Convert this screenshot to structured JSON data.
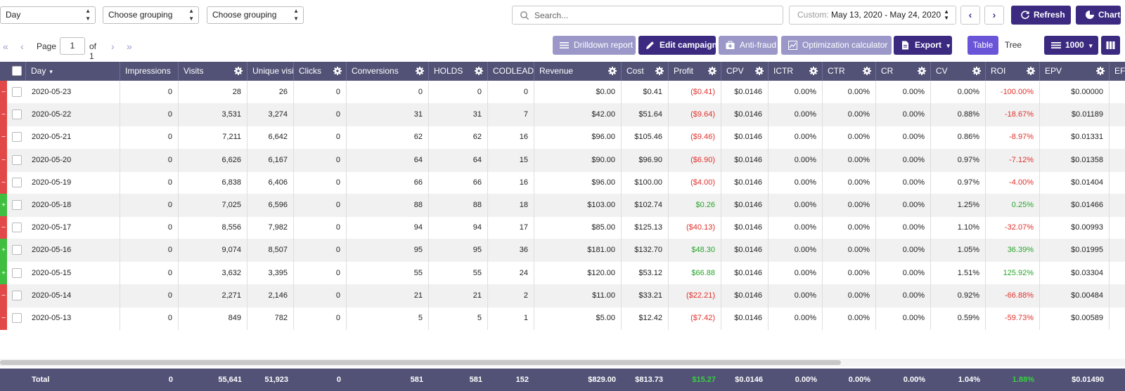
{
  "filters": {
    "period": "Day",
    "grouping1": "Choose grouping",
    "grouping2": "Choose grouping",
    "search_placeholder": "Search...",
    "date_label": "Custom:",
    "date_value": "May 13, 2020 - May 24, 2020",
    "refresh": "Refresh",
    "chart": "Chart"
  },
  "pager": {
    "page_label": "Page",
    "page_value": "1",
    "of_label": "of 1"
  },
  "toolbar": {
    "drilldown": "Drilldown report",
    "edit_campaign": "Edit campaign",
    "anti_fraud": "Anti-fraud",
    "optimization": "Optimization calculator",
    "export": "Export",
    "table": "Table",
    "tree": "Tree",
    "rows": "1000"
  },
  "columns": [
    "Day",
    "Impressions",
    "Visits",
    "Unique visi",
    "Clicks",
    "Conversions",
    "HOLDS",
    "CODLEAD",
    "Revenue",
    "Cost",
    "Profit",
    "CPV",
    "ICTR",
    "CTR",
    "CR",
    "CV",
    "ROI",
    "EPV",
    "EF"
  ],
  "rows": [
    {
      "status": "minus",
      "day": "2020-05-23",
      "impressions": "0",
      "visits": "28",
      "unique": "26",
      "clicks": "0",
      "conversions": "0",
      "holds": "0",
      "codlead": "0",
      "revenue": "$0.00",
      "cost": "$0.41",
      "profit": "($0.41)",
      "cpv": "$0.0146",
      "ictr": "0.00%",
      "ctr": "0.00%",
      "cr": "0.00%",
      "cv": "0.00%",
      "roi": "-100.00%",
      "epv": "$0.00000"
    },
    {
      "status": "minus",
      "day": "2020-05-22",
      "impressions": "0",
      "visits": "3,531",
      "unique": "3,274",
      "clicks": "0",
      "conversions": "31",
      "holds": "31",
      "codlead": "7",
      "revenue": "$42.00",
      "cost": "$51.64",
      "profit": "($9.64)",
      "cpv": "$0.0146",
      "ictr": "0.00%",
      "ctr": "0.00%",
      "cr": "0.00%",
      "cv": "0.88%",
      "roi": "-18.67%",
      "epv": "$0.01189"
    },
    {
      "status": "minus",
      "day": "2020-05-21",
      "impressions": "0",
      "visits": "7,211",
      "unique": "6,642",
      "clicks": "0",
      "conversions": "62",
      "holds": "62",
      "codlead": "16",
      "revenue": "$96.00",
      "cost": "$105.46",
      "profit": "($9.46)",
      "cpv": "$0.0146",
      "ictr": "0.00%",
      "ctr": "0.00%",
      "cr": "0.00%",
      "cv": "0.86%",
      "roi": "-8.97%",
      "epv": "$0.01331"
    },
    {
      "status": "minus",
      "day": "2020-05-20",
      "impressions": "0",
      "visits": "6,626",
      "unique": "6,167",
      "clicks": "0",
      "conversions": "64",
      "holds": "64",
      "codlead": "15",
      "revenue": "$90.00",
      "cost": "$96.90",
      "profit": "($6.90)",
      "cpv": "$0.0146",
      "ictr": "0.00%",
      "ctr": "0.00%",
      "cr": "0.00%",
      "cv": "0.97%",
      "roi": "-7.12%",
      "epv": "$0.01358"
    },
    {
      "status": "minus",
      "day": "2020-05-19",
      "impressions": "0",
      "visits": "6,838",
      "unique": "6,406",
      "clicks": "0",
      "conversions": "66",
      "holds": "66",
      "codlead": "16",
      "revenue": "$96.00",
      "cost": "$100.00",
      "profit": "($4.00)",
      "cpv": "$0.0146",
      "ictr": "0.00%",
      "ctr": "0.00%",
      "cr": "0.00%",
      "cv": "0.97%",
      "roi": "-4.00%",
      "epv": "$0.01404"
    },
    {
      "status": "plus",
      "day": "2020-05-18",
      "impressions": "0",
      "visits": "7,025",
      "unique": "6,596",
      "clicks": "0",
      "conversions": "88",
      "holds": "88",
      "codlead": "18",
      "revenue": "$103.00",
      "cost": "$102.74",
      "profit": "$0.26",
      "cpv": "$0.0146",
      "ictr": "0.00%",
      "ctr": "0.00%",
      "cr": "0.00%",
      "cv": "1.25%",
      "roi": "0.25%",
      "epv": "$0.01466"
    },
    {
      "status": "minus",
      "day": "2020-05-17",
      "impressions": "0",
      "visits": "8,556",
      "unique": "7,982",
      "clicks": "0",
      "conversions": "94",
      "holds": "94",
      "codlead": "17",
      "revenue": "$85.00",
      "cost": "$125.13",
      "profit": "($40.13)",
      "cpv": "$0.0146",
      "ictr": "0.00%",
      "ctr": "0.00%",
      "cr": "0.00%",
      "cv": "1.10%",
      "roi": "-32.07%",
      "epv": "$0.00993"
    },
    {
      "status": "plus",
      "day": "2020-05-16",
      "impressions": "0",
      "visits": "9,074",
      "unique": "8,507",
      "clicks": "0",
      "conversions": "95",
      "holds": "95",
      "codlead": "36",
      "revenue": "$181.00",
      "cost": "$132.70",
      "profit": "$48.30",
      "cpv": "$0.0146",
      "ictr": "0.00%",
      "ctr": "0.00%",
      "cr": "0.00%",
      "cv": "1.05%",
      "roi": "36.39%",
      "epv": "$0.01995"
    },
    {
      "status": "plus",
      "day": "2020-05-15",
      "impressions": "0",
      "visits": "3,632",
      "unique": "3,395",
      "clicks": "0",
      "conversions": "55",
      "holds": "55",
      "codlead": "24",
      "revenue": "$120.00",
      "cost": "$53.12",
      "profit": "$66.88",
      "cpv": "$0.0146",
      "ictr": "0.00%",
      "ctr": "0.00%",
      "cr": "0.00%",
      "cv": "1.51%",
      "roi": "125.92%",
      "epv": "$0.03304"
    },
    {
      "status": "minus",
      "day": "2020-05-14",
      "impressions": "0",
      "visits": "2,271",
      "unique": "2,146",
      "clicks": "0",
      "conversions": "21",
      "holds": "21",
      "codlead": "2",
      "revenue": "$11.00",
      "cost": "$33.21",
      "profit": "($22.21)",
      "cpv": "$0.0146",
      "ictr": "0.00%",
      "ctr": "0.00%",
      "cr": "0.00%",
      "cv": "0.92%",
      "roi": "-66.88%",
      "epv": "$0.00484"
    },
    {
      "status": "minus",
      "day": "2020-05-13",
      "impressions": "0",
      "visits": "849",
      "unique": "782",
      "clicks": "0",
      "conversions": "5",
      "holds": "5",
      "codlead": "1",
      "revenue": "$5.00",
      "cost": "$12.42",
      "profit": "($7.42)",
      "cpv": "$0.0146",
      "ictr": "0.00%",
      "ctr": "0.00%",
      "cr": "0.00%",
      "cv": "0.59%",
      "roi": "-59.73%",
      "epv": "$0.00589"
    }
  ],
  "total": {
    "label": "Total",
    "impressions": "0",
    "visits": "55,641",
    "unique": "51,923",
    "clicks": "0",
    "conversions": "581",
    "holds": "581",
    "codlead": "152",
    "revenue": "$829.00",
    "cost": "$813.73",
    "profit": "$15.27",
    "cpv": "$0.0146",
    "ictr": "0.00%",
    "ctr": "0.00%",
    "cr": "0.00%",
    "cv": "1.04%",
    "roi": "1.88%",
    "epv": "$0.01490"
  },
  "colors": {
    "header": "#525277",
    "accent": "#3b2a80",
    "negative": "#e0312b",
    "positive": "#27a42a",
    "status_red": "#e24848",
    "status_green": "#3fbe3f"
  }
}
